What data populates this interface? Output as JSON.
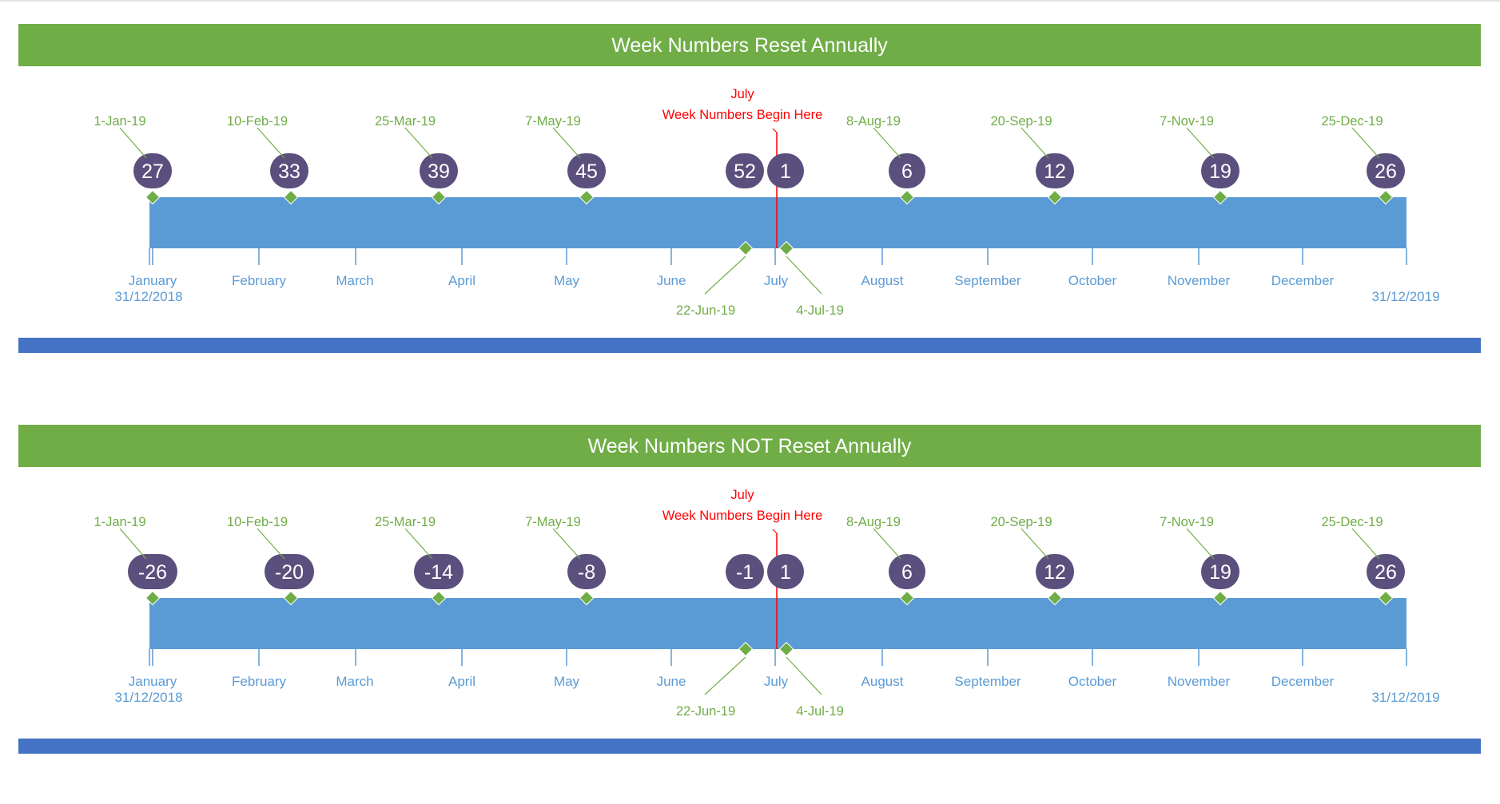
{
  "colors": {
    "banner_green": "#70ad47",
    "bar_blue": "#5b9bd5",
    "footer_blue": "#4472c4",
    "bubble_purple": "#5b4f7d",
    "marker_green": "#70ad47",
    "divider_red": "#ff0000",
    "month_text": "#5b9bd5"
  },
  "panels": [
    {
      "title": "Week Numbers Reset Annually",
      "divider_label_1": "July",
      "divider_label_2": "Week Numbers Begin Here",
      "start_date_label": "31/12/2018",
      "end_date_label": "31/12/2019",
      "months": [
        "January",
        "February",
        "March",
        "April",
        "May",
        "June",
        "July",
        "August",
        "September",
        "October",
        "November",
        "December"
      ],
      "milestones": [
        {
          "date": "1-Jan-19",
          "week": "27"
        },
        {
          "date": "10-Feb-19",
          "week": "33"
        },
        {
          "date": "25-Mar-19",
          "week": "39"
        },
        {
          "date": "7-May-19",
          "week": "45"
        },
        {
          "date": "22-Jun-19",
          "week": "52"
        },
        {
          "date": "4-Jul-19",
          "week": "1"
        },
        {
          "date": "8-Aug-19",
          "week": "6"
        },
        {
          "date": "20-Sep-19",
          "week": "12"
        },
        {
          "date": "7-Nov-19",
          "week": "19"
        },
        {
          "date": "25-Dec-19",
          "week": "26"
        }
      ]
    },
    {
      "title": "Week Numbers NOT Reset Annually",
      "divider_label_1": "July",
      "divider_label_2": "Week Numbers Begin Here",
      "start_date_label": "31/12/2018",
      "end_date_label": "31/12/2019",
      "months": [
        "January",
        "February",
        "March",
        "April",
        "May",
        "June",
        "July",
        "August",
        "September",
        "October",
        "November",
        "December"
      ],
      "milestones": [
        {
          "date": "1-Jan-19",
          "week": "-26"
        },
        {
          "date": "10-Feb-19",
          "week": "-20"
        },
        {
          "date": "25-Mar-19",
          "week": "-14"
        },
        {
          "date": "7-May-19",
          "week": "-8"
        },
        {
          "date": "22-Jun-19",
          "week": "-1"
        },
        {
          "date": "4-Jul-19",
          "week": "1"
        },
        {
          "date": "8-Aug-19",
          "week": "6"
        },
        {
          "date": "20-Sep-19",
          "week": "12"
        },
        {
          "date": "7-Nov-19",
          "week": "19"
        },
        {
          "date": "25-Dec-19",
          "week": "26"
        }
      ]
    }
  ]
}
